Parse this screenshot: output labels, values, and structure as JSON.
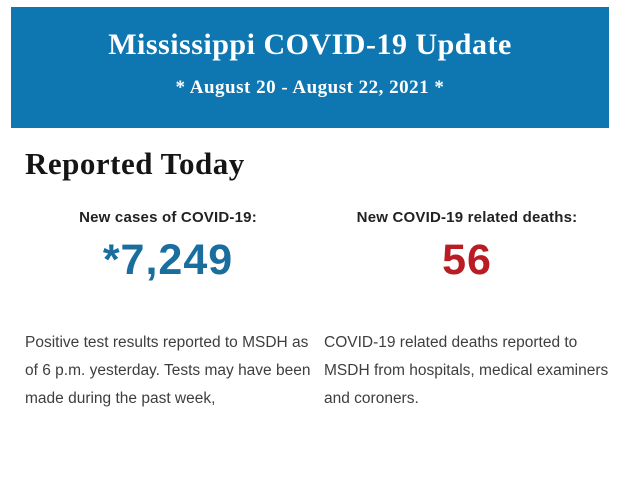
{
  "colors": {
    "banner_bg": "#0e76b0",
    "banner_text": "#ffffff",
    "heading_text": "#151515",
    "label_text": "#222222",
    "note_text": "#3e3e3e",
    "cases_value": "#1a6e9e",
    "deaths_value": "#b91d23"
  },
  "banner": {
    "title": "Mississippi COVID-19 Update",
    "subtitle": "* August 20 - August 22, 2021 *"
  },
  "main": {
    "heading": "Reported Today",
    "stats": [
      {
        "label": "New cases of COVID-19:",
        "value": "*7,249",
        "note": "Positive test results reported to MSDH as of 6 p.m. yesterday. Tests may have been made during the past week,"
      },
      {
        "label": "New COVID-19 related deaths:",
        "value": "56",
        "note": "COVID-19 related deaths reported to MSDH from hospitals, medical examiners and coroners."
      }
    ]
  }
}
